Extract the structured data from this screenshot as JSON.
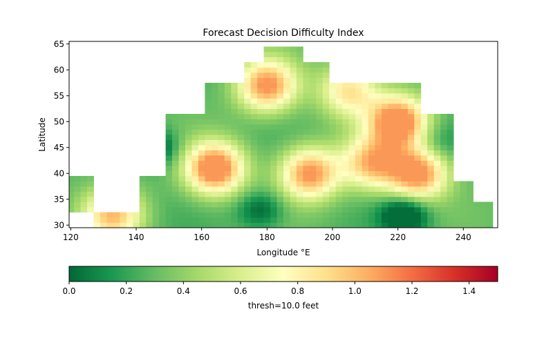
{
  "chart_data": {
    "type": "heatmap",
    "title": "Forecast Decision Difficulty Index",
    "xlabel": "Longitude °E",
    "ylabel": "Latitude",
    "xlim": [
      119.5,
      250.5
    ],
    "ylim": [
      29.5,
      65.5
    ],
    "xticks": [
      120,
      140,
      160,
      180,
      200,
      220,
      240
    ],
    "yticks": [
      30,
      35,
      40,
      45,
      50,
      55,
      60,
      65
    ],
    "grid": false,
    "colormap": "RdYlGn_r (green low → yellow → red high)",
    "colorbar": {
      "orientation": "horizontal",
      "position": "bottom",
      "range": [
        0.0,
        1.5
      ],
      "ticks": [
        "0.0",
        "0.2",
        "0.4",
        "0.6",
        "0.8",
        "1.0",
        "1.2",
        "1.4"
      ],
      "label": "thresh=10.0 feet"
    },
    "lon_step": 2,
    "lat_step": 1,
    "highs": [
      {
        "lon": 164,
        "lat": 41,
        "value": 1.0
      },
      {
        "lon": 193,
        "lat": 40,
        "value": 0.85
      },
      {
        "lon": 180,
        "lat": 57,
        "value": 0.85
      },
      {
        "lon": 220,
        "lat": 50,
        "value": 1.0
      },
      {
        "lon": 212,
        "lat": 42,
        "value": 0.7
      },
      {
        "lon": 226,
        "lat": 40,
        "value": 0.9
      },
      {
        "lon": 133,
        "lat": 32,
        "value": 0.7
      },
      {
        "lon": 205,
        "lat": 56,
        "value": 0.6
      }
    ],
    "lows": [
      {
        "lon": 232,
        "lat": 46,
        "value": 0.45
      },
      {
        "lon": 222,
        "lat": 32,
        "value": 0.1
      },
      {
        "lon": 145,
        "lat": 45,
        "value": 0.15
      },
      {
        "lon": 178,
        "lat": 33,
        "value": 0.3
      }
    ]
  }
}
